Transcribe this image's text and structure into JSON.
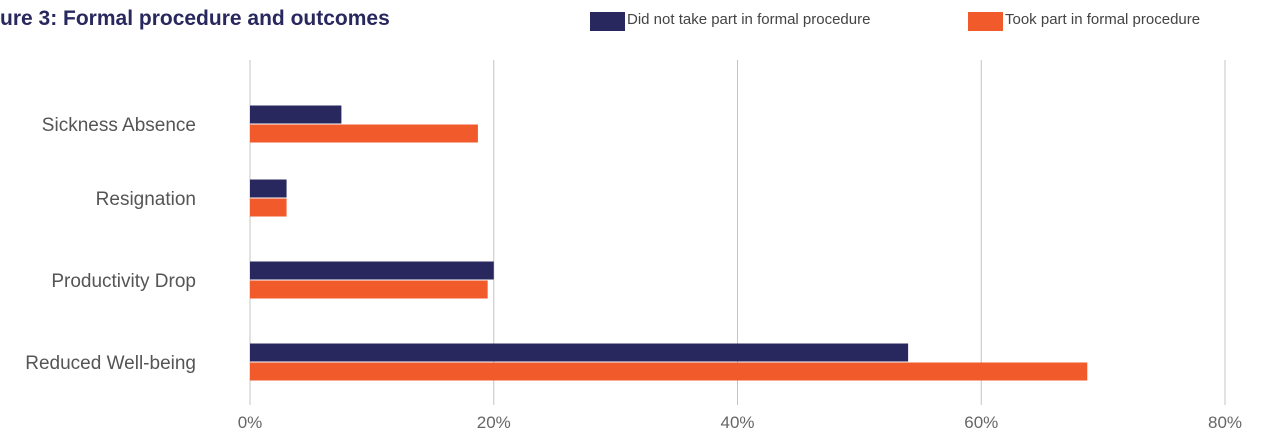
{
  "chart_data": {
    "type": "bar",
    "orientation": "horizontal",
    "title": "ure 3: Formal procedure and outcomes",
    "categories": [
      "Sickness Absence",
      "Resignation",
      "Productivity Drop",
      "Reduced Well-being"
    ],
    "series": [
      {
        "name": "Did not take part in formal procedure",
        "color": "#28285e",
        "values": [
          7.5,
          3,
          20,
          54
        ]
      },
      {
        "name": "Took part in formal procedure",
        "color": "#f15a2b",
        "values": [
          18.7,
          3,
          19.5,
          68.7
        ]
      }
    ],
    "xlim": [
      0,
      80
    ],
    "xticks": [
      "0%",
      "20%",
      "40%",
      "60%",
      "80%"
    ],
    "xtick_values": [
      0,
      20,
      40,
      60,
      80
    ],
    "grid": true,
    "legend_position": "top-right",
    "colors": {
      "title": "#28285e",
      "grid": "#c4c4c4"
    }
  }
}
